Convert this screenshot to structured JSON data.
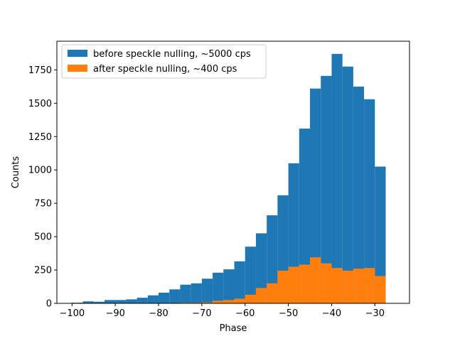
{
  "chart_data": {
    "type": "histogram",
    "xlabel": "Phase",
    "ylabel": "Counts",
    "xlim": [
      -103.5,
      -22
    ],
    "ylim": [
      0,
      1965
    ],
    "xticks": [
      -100,
      -90,
      -80,
      -70,
      -60,
      -50,
      -40,
      -30
    ],
    "xtick_labels": [
      "−100",
      "−90",
      "−80",
      "−70",
      "−60",
      "−50",
      "−40",
      "−30"
    ],
    "yticks": [
      0,
      250,
      500,
      750,
      1000,
      1250,
      1500,
      1750
    ],
    "yticks_labels": [
      "0",
      "250",
      "500",
      "750",
      "1000",
      "1250",
      "1500",
      "1750"
    ],
    "legend_position": "upper-left",
    "series": [
      {
        "name": "before speckle nulling, ~5000 cps",
        "color": "#1f77b4",
        "bins": [
          [
            -100.0,
            5
          ],
          [
            -97.5,
            15
          ],
          [
            -95.0,
            12
          ],
          [
            -92.5,
            25
          ],
          [
            -90.0,
            25
          ],
          [
            -87.5,
            30
          ],
          [
            -85.0,
            42
          ],
          [
            -82.5,
            60
          ],
          [
            -80.0,
            80
          ],
          [
            -77.5,
            105
          ],
          [
            -75.0,
            140
          ],
          [
            -72.5,
            150
          ],
          [
            -70.0,
            185
          ],
          [
            -67.5,
            230
          ],
          [
            -65.0,
            255
          ],
          [
            -62.5,
            315
          ],
          [
            -60.0,
            425
          ],
          [
            -57.5,
            525
          ],
          [
            -55.0,
            660
          ],
          [
            -52.5,
            810
          ],
          [
            -50.0,
            1050
          ],
          [
            -47.5,
            1310
          ],
          [
            -45.0,
            1610
          ],
          [
            -42.5,
            1705
          ],
          [
            -40.0,
            1870
          ],
          [
            -37.5,
            1775
          ],
          [
            -35.0,
            1625
          ],
          [
            -32.5,
            1530
          ],
          [
            -30.0,
            1025
          ]
        ]
      },
      {
        "name": "after speckle nulling, ~400 cps",
        "color": "#ff7f0e",
        "bins": [
          [
            -75.0,
            5
          ],
          [
            -72.5,
            5
          ],
          [
            -70.0,
            8
          ],
          [
            -67.5,
            20
          ],
          [
            -65.0,
            25
          ],
          [
            -62.5,
            35
          ],
          [
            -60.0,
            65
          ],
          [
            -57.5,
            115
          ],
          [
            -55.0,
            150
          ],
          [
            -52.5,
            245
          ],
          [
            -50.0,
            275
          ],
          [
            -47.5,
            290
          ],
          [
            -45.0,
            345
          ],
          [
            -42.5,
            300
          ],
          [
            -40.0,
            265
          ],
          [
            -37.5,
            245
          ],
          [
            -35.0,
            260
          ],
          [
            -32.5,
            265
          ],
          [
            -30.0,
            205
          ]
        ]
      }
    ],
    "bin_width": 2.5
  }
}
